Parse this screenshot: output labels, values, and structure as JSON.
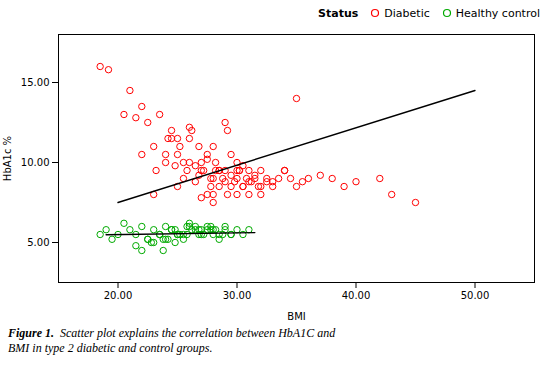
{
  "chart_data": {
    "type": "scatter",
    "xlabel": "BMI",
    "ylabel": "HbA1c %",
    "caption": {
      "bold": "Figure 1.",
      "text": "  Scatter plot explains the correlation between HbA1C and\nBMI in type 2 diabetic and control groups."
    },
    "xlim": [
      15.0,
      55.0
    ],
    "ylim": [
      2.5,
      18.0
    ],
    "xticks": [
      {
        "value": 20,
        "label": "20.00"
      },
      {
        "value": 30,
        "label": "30.00"
      },
      {
        "value": 40,
        "label": "40.00"
      },
      {
        "value": 50,
        "label": "50.00"
      }
    ],
    "yticks": [
      {
        "value": 5,
        "label": "5.00"
      },
      {
        "value": 10,
        "label": "10.00"
      },
      {
        "value": 15,
        "label": "15.00"
      }
    ],
    "grid": false,
    "legend": "upper right",
    "legend_title": "Status",
    "series": [
      {
        "name": "Diabetic",
        "type": "scatter",
        "color": "#FF0000",
        "marker": "o",
        "x": [
          18.5,
          19.2,
          20.5,
          21.0,
          21.5,
          22.0,
          22.5,
          23.0,
          23.2,
          23.5,
          24.0,
          24.2,
          24.5,
          24.8,
          25.0,
          25.0,
          25.2,
          25.5,
          25.8,
          26.0,
          26.0,
          26.2,
          26.5,
          26.8,
          27.0,
          27.0,
          27.2,
          27.5,
          27.5,
          27.8,
          28.0,
          28.0,
          28.0,
          28.2,
          28.5,
          28.5,
          28.8,
          29.0,
          29.0,
          29.2,
          29.5,
          29.5,
          29.8,
          30.0,
          30.0,
          30.0,
          30.2,
          30.5,
          30.5,
          30.8,
          31.0,
          31.0,
          31.2,
          31.5,
          31.8,
          32.0,
          32.0,
          32.5,
          33.0,
          33.5,
          34.0,
          34.5,
          35.0,
          35.5,
          36.0,
          37.0,
          38.0,
          39.0,
          40.0,
          42.0,
          43.0,
          45.0,
          22.0,
          23.0,
          24.0,
          25.0,
          26.0,
          27.0,
          28.0,
          29.0,
          30.0,
          31.0,
          32.0,
          33.0,
          34.0,
          35.0,
          26.5,
          27.5,
          28.5,
          29.5,
          24.5,
          25.5,
          30.5,
          31.5,
          32.5,
          28.2,
          29.2,
          30.2,
          27.8,
          26.8
        ],
        "values": [
          16.0,
          15.8,
          13.0,
          14.5,
          12.8,
          13.5,
          12.5,
          8.0,
          9.5,
          13.0,
          10.0,
          11.5,
          12.0,
          9.8,
          10.5,
          8.5,
          11.0,
          9.0,
          9.5,
          10.0,
          11.5,
          12.0,
          8.8,
          9.2,
          10.0,
          7.8,
          9.5,
          8.0,
          10.5,
          9.0,
          7.5,
          8.0,
          9.0,
          10.0,
          9.5,
          8.5,
          9.0,
          8.8,
          9.5,
          12.0,
          8.5,
          9.2,
          8.8,
          8.0,
          9.0,
          10.0,
          9.5,
          8.5,
          9.8,
          9.0,
          8.0,
          9.5,
          8.8,
          9.0,
          8.5,
          9.5,
          8.0,
          9.0,
          8.5,
          9.0,
          9.5,
          9.0,
          8.5,
          8.8,
          9.0,
          9.2,
          9.0,
          8.5,
          8.8,
          9.0,
          8.0,
          7.5,
          10.5,
          11.0,
          10.5,
          11.5,
          12.2,
          9.5,
          11.0,
          12.5,
          9.5,
          8.8,
          8.5,
          8.8,
          9.5,
          14.0,
          9.8,
          10.2,
          9.5,
          10.5,
          11.5,
          10.0,
          8.5,
          9.2,
          8.8,
          9.5,
          8.0,
          9.5,
          8.5,
          11.0
        ]
      },
      {
        "name": "Healthy control",
        "type": "scatter",
        "color": "#00AA00",
        "marker": "o",
        "x": [
          18.5,
          19.0,
          19.5,
          20.0,
          20.5,
          21.0,
          21.5,
          22.0,
          22.5,
          23.0,
          23.5,
          24.0,
          24.5,
          25.0,
          25.5,
          26.0,
          26.5,
          27.0,
          27.5,
          28.0,
          28.5,
          29.0,
          29.5,
          30.0,
          30.5,
          31.0,
          22.0,
          23.0,
          24.0,
          25.0,
          26.0,
          27.0,
          28.0,
          29.0,
          21.5,
          22.5,
          23.5,
          24.5,
          25.5,
          26.5,
          27.5,
          28.5,
          29.5,
          24.2,
          25.2,
          26.2,
          27.2,
          28.2,
          23.8,
          24.8,
          25.8,
          26.8,
          27.8,
          28.8,
          22.8,
          23.8,
          24.8,
          25.8,
          26.8,
          27.8
        ],
        "values": [
          5.5,
          5.8,
          5.2,
          5.5,
          6.2,
          5.8,
          5.5,
          6.0,
          5.2,
          5.8,
          5.5,
          6.0,
          5.8,
          5.5,
          5.2,
          6.0,
          5.8,
          5.5,
          6.0,
          5.8,
          5.5,
          5.8,
          5.5,
          5.8,
          5.5,
          5.8,
          4.5,
          5.0,
          5.2,
          5.5,
          6.2,
          5.8,
          5.5,
          6.0,
          4.8,
          5.2,
          5.5,
          5.8,
          5.5,
          6.0,
          5.8,
          5.2,
          5.5,
          5.2,
          5.5,
          5.8,
          5.5,
          5.8,
          4.5,
          5.0,
          5.5,
          5.8,
          6.0,
          5.5,
          5.0,
          5.2,
          5.8,
          6.0,
          5.5,
          5.8
        ]
      },
      {
        "type": "line",
        "color": "#000000",
        "line_style": "solid",
        "x": [
          20.0,
          50.0
        ],
        "values": [
          7.5,
          14.5
        ]
      },
      {
        "type": "line",
        "color": "#000000",
        "line_style": "solid",
        "x": [
          19.0,
          31.5
        ],
        "values": [
          5.48,
          5.62
        ]
      }
    ]
  }
}
